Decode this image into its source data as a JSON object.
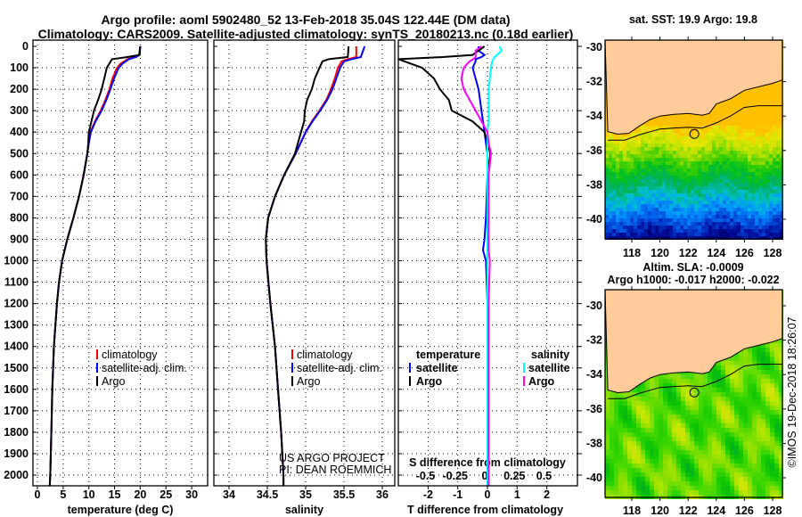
{
  "title": {
    "line1": "Argo profile: aoml 5902480_52 13-Feb-2018 35.04S 122.44E (DM data)",
    "line2": "Climatology: CARS2009. Satellite-adjusted climatology: synTS_20180213.nc (0.18d earlier)"
  },
  "credit": {
    "project": "US ARGO PROJECT",
    "pi": "PI: DEAN ROEMMICH",
    "stamp": "©IMOS 19-Dec-2018 18:26:07"
  },
  "colors": {
    "climatology": "#ff0000",
    "satellite": "#0000ff",
    "argo": "#000000",
    "sal_satellite": "#00ffff",
    "sal_argo": "#ff00ff",
    "land": "#ffcc99"
  },
  "chart_data": [
    {
      "type": "line",
      "name": "temperature",
      "xlabel": "temperature (deg C)",
      "ylabel": "",
      "xlim": [
        -1,
        32
      ],
      "ylim": [
        2050,
        0
      ],
      "xticks": [
        0,
        5,
        10,
        15,
        20,
        25,
        30
      ],
      "yticks": [
        0,
        100,
        200,
        300,
        400,
        500,
        600,
        700,
        800,
        900,
        1000,
        1100,
        1200,
        1300,
        1400,
        1500,
        1600,
        1700,
        1800,
        1900,
        2000
      ],
      "legend": [
        "climatology",
        "satellite-adj. clim.",
        "Argo"
      ],
      "depth": [
        0,
        40,
        50,
        60,
        80,
        100,
        150,
        200,
        250,
        300,
        350,
        400,
        450,
        500,
        600,
        700,
        800,
        900,
        1000,
        1100,
        1200,
        1300,
        1400,
        1600,
        1800,
        2000,
        2050
      ],
      "series": [
        {
          "name": "climatology",
          "values": [
            20,
            19.8,
            19,
            17.5,
            16.2,
            15.5,
            14.6,
            14,
            13.2,
            12.3,
            11.2,
            10.3,
            10,
            9.7,
            9,
            8.1,
            7,
            5.8,
            4.8,
            4.2,
            3.8,
            3.5,
            3.2,
            2.9,
            2.7,
            2.5,
            2.4
          ]
        },
        {
          "name": "satellite-adj. clim.",
          "values": [
            20,
            19.9,
            19.2,
            17.8,
            16.6,
            15.8,
            14.9,
            14.2,
            13.4,
            12.5,
            11.3,
            10.4,
            10,
            9.7,
            9,
            8.1,
            7,
            5.8,
            4.8,
            4.2,
            3.8,
            3.5,
            3.2,
            2.9,
            2.7,
            2.5,
            2.4
          ]
        },
        {
          "name": "Argo",
          "values": [
            20,
            19.8,
            17.5,
            14.5,
            14,
            13.5,
            13,
            12.5,
            11.8,
            11,
            10.5,
            10,
            9.9,
            9.7,
            9,
            8.1,
            7,
            5.8,
            4.8,
            4.2,
            3.8,
            3.5,
            3.2,
            2.9,
            2.7,
            2.5,
            2.4
          ]
        }
      ]
    },
    {
      "type": "line",
      "name": "salinity",
      "xlabel": "salinity",
      "xlim": [
        33.8,
        36.05
      ],
      "ylim": [
        2050,
        0
      ],
      "xticks": [
        34,
        34.5,
        35,
        35.5,
        36
      ],
      "legend": [
        "climatology",
        "satellite-adj. clim.",
        "Argo"
      ],
      "depth": [
        0,
        50,
        60,
        70,
        100,
        150,
        200,
        250,
        300,
        350,
        400,
        500,
        600,
        700,
        800,
        900,
        1000,
        1200,
        1400,
        1600,
        1800,
        2000,
        2050
      ],
      "series": [
        {
          "name": "climatology",
          "values": [
            35.66,
            35.66,
            35.55,
            35.47,
            35.42,
            35.38,
            35.33,
            35.27,
            35.18,
            35.08,
            35.0,
            34.87,
            34.72,
            34.6,
            34.51,
            34.48,
            34.49,
            34.54,
            34.6,
            34.64,
            34.68,
            34.71,
            34.71
          ]
        },
        {
          "name": "satellite-adj. clim.",
          "values": [
            35.77,
            35.72,
            35.6,
            35.5,
            35.45,
            35.4,
            35.35,
            35.28,
            35.19,
            35.09,
            35.0,
            34.87,
            34.72,
            34.6,
            34.51,
            34.48,
            34.49,
            34.54,
            34.6,
            34.64,
            34.68,
            34.71,
            34.71
          ]
        },
        {
          "name": "Argo",
          "values": [
            35.56,
            35.55,
            35.3,
            35.22,
            35.18,
            35.12,
            35.08,
            35.02,
            34.99,
            34.98,
            34.94,
            34.86,
            34.72,
            34.6,
            34.51,
            34.48,
            34.49,
            34.54,
            34.6,
            34.64,
            34.68,
            34.71,
            34.71
          ]
        }
      ]
    },
    {
      "type": "line",
      "name": "difference",
      "xlabel": "T difference from climatology",
      "x2label": "S difference from climatology",
      "xlim": [
        -3,
        3
      ],
      "x2lim": [
        -0.75,
        0.75
      ],
      "ylim": [
        2050,
        0
      ],
      "xticks": [
        -2,
        -1,
        0,
        1,
        2
      ],
      "x2ticks": [
        -0.5,
        -0.25,
        0,
        0.25,
        0.5
      ],
      "legend_temperature": {
        "title": "temperature",
        "items": [
          "satellite",
          "Argo"
        ]
      },
      "legend_salinity": {
        "title": "salinity",
        "items": [
          "satellite",
          "Argo"
        ]
      },
      "depth": [
        0,
        20,
        40,
        50,
        60,
        70,
        100,
        150,
        200,
        250,
        300,
        350,
        400,
        450,
        500,
        600,
        800,
        900,
        950,
        1000,
        1200,
        1500,
        2000,
        2050
      ],
      "series": [
        {
          "name": "temperature satellite",
          "axis": "T",
          "values": [
            -0.3,
            -0.3,
            -0.1,
            -0.2,
            -0.4,
            -0.4,
            -0.5,
            -0.4,
            -0.3,
            -0.25,
            -0.2,
            -0.15,
            -0.1,
            -0.05,
            0,
            0,
            -0.05,
            -0.1,
            -0.15,
            -0.05,
            0,
            0,
            0,
            0
          ]
        },
        {
          "name": "temperature Argo",
          "axis": "T",
          "values": [
            -0.1,
            -0.3,
            -0.5,
            -1.5,
            -3,
            -2.8,
            -2.2,
            -1.8,
            -1.6,
            -1.3,
            -1.2,
            -0.5,
            -0.1,
            0,
            0.1,
            0,
            0,
            0,
            0,
            0,
            0,
            0,
            0,
            0
          ]
        },
        {
          "name": "salinity satellite",
          "axis": "S",
          "values": [
            0.1,
            0.12,
            0.08,
            0.06,
            0.05,
            0.04,
            0.03,
            0.02,
            0.01,
            0.01,
            0.01,
            0.01,
            0,
            0,
            0,
            0,
            0,
            0,
            0,
            0,
            0,
            0,
            0,
            0
          ]
        },
        {
          "name": "salinity Argo",
          "axis": "S",
          "values": [
            -0.05,
            -0.1,
            -0.1,
            -0.1,
            -0.12,
            -0.15,
            -0.2,
            -0.22,
            -0.2,
            -0.15,
            -0.1,
            -0.05,
            0,
            0.01,
            0.03,
            0.01,
            0.01,
            0.01,
            0.01,
            0.02,
            0.01,
            0.01,
            0.01,
            0.01
          ]
        }
      ]
    },
    {
      "type": "heatmap",
      "name": "sst-map",
      "title": "sat. SST: 19.9 Argo: 19.8",
      "xlim": [
        116.3,
        128.7
      ],
      "ylim": [
        -41.1,
        -29.6
      ],
      "xticks": [
        118,
        120,
        122,
        124,
        126,
        128
      ],
      "yticks": [
        -30,
        -32,
        -34,
        -36,
        -38,
        -40
      ],
      "float": [
        122.44,
        -35.04
      ]
    },
    {
      "type": "heatmap",
      "name": "sla-map",
      "title": "Altim. SLA: -0.0009",
      "subtitle": "Argo h1000: -0.017 h2000: -0.022",
      "xlim": [
        116.3,
        128.7
      ],
      "ylim": [
        -41.1,
        -29.6
      ],
      "xticks": [
        118,
        120,
        122,
        124,
        126,
        128
      ],
      "yticks": [
        -30,
        -32,
        -34,
        -36,
        -38,
        -40
      ],
      "float": [
        122.44,
        -35.04
      ]
    }
  ],
  "coastline": [
    [
      116.3,
      -34.9
    ],
    [
      117,
      -35.05
    ],
    [
      117.8,
      -35.0
    ],
    [
      118.5,
      -34.6
    ],
    [
      119.3,
      -34.2
    ],
    [
      120,
      -34.0
    ],
    [
      121,
      -33.9
    ],
    [
      122,
      -33.85
    ],
    [
      123,
      -33.95
    ],
    [
      123.5,
      -33.85
    ],
    [
      124,
      -33.3
    ],
    [
      125,
      -33.0
    ],
    [
      126,
      -32.5
    ],
    [
      127,
      -32.3
    ],
    [
      128,
      -32.1
    ],
    [
      128.7,
      -31.9
    ]
  ],
  "shelf_contour": [
    [
      116.3,
      -35.4
    ],
    [
      117.5,
      -35.4
    ],
    [
      118.5,
      -35.1
    ],
    [
      120,
      -34.75
    ],
    [
      122,
      -34.65
    ],
    [
      123,
      -34.7
    ],
    [
      124,
      -34.4
    ],
    [
      125,
      -34.0
    ],
    [
      126,
      -33.5
    ],
    [
      127,
      -33.4
    ],
    [
      128.7,
      -33.4
    ]
  ]
}
